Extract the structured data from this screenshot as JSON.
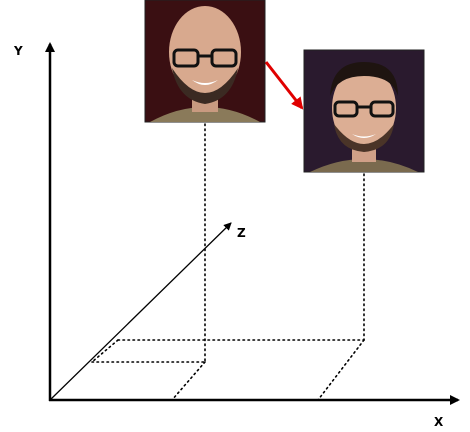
{
  "axes": {
    "y": "Y",
    "z": "Z",
    "x": "X"
  }
}
